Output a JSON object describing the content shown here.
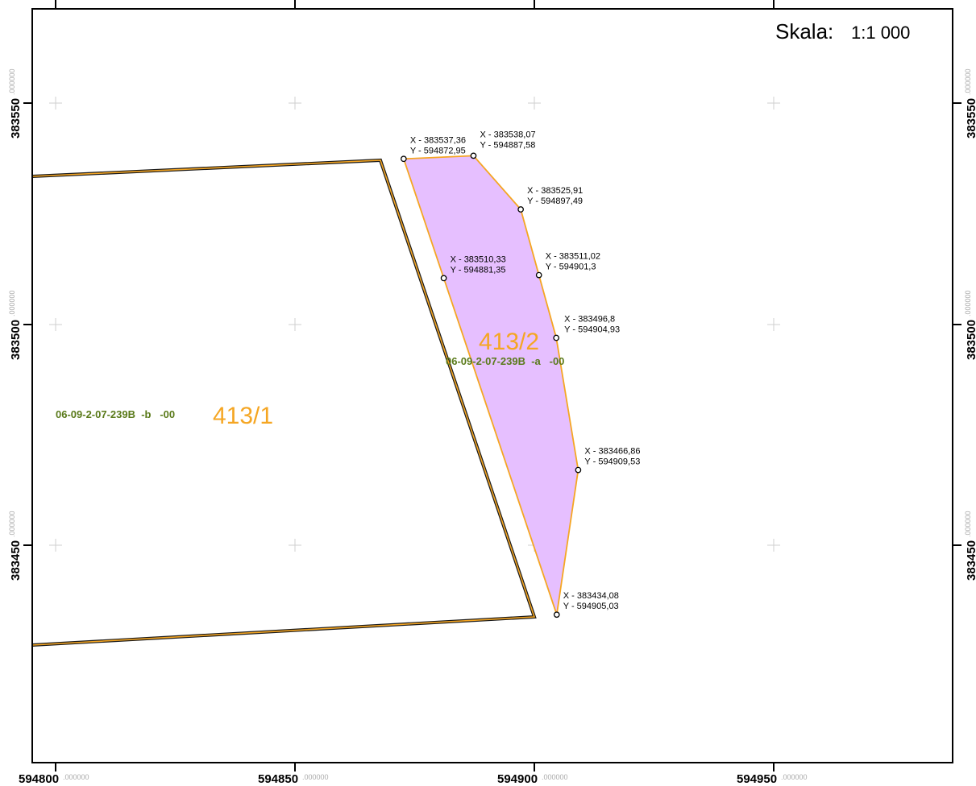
{
  "scale": {
    "label": "Skala:",
    "value": "1:1 000"
  },
  "axes": {
    "x_ticks": [
      {
        "major": "594800",
        "minor": ".000000"
      },
      {
        "major": "594850",
        "minor": ".000000"
      },
      {
        "major": "594900",
        "minor": ".000000"
      },
      {
        "major": "594950",
        "minor": ".000000"
      }
    ],
    "y_ticks": [
      {
        "major": "383550",
        "minor": ".000000"
      },
      {
        "major": "383500",
        "minor": ".000000"
      },
      {
        "major": "383450",
        "minor": ".000000"
      }
    ]
  },
  "colors": {
    "parcel_fill": "#e6bfff",
    "parcel_outline": "#f5a623",
    "parcel_number": "#f5a623",
    "parcel_code": "#5a7a1a"
  },
  "parcels": [
    {
      "number": "413/1",
      "code": "06-09-2-07-239B  -b   -00"
    },
    {
      "number": "413/2",
      "code": "06-09-2-07-239B  -a   -00"
    }
  ],
  "vertices": [
    {
      "x_label": "X - 383537,36",
      "y_label": "Y - 594872,95",
      "X": 383537.36,
      "Y": 594872.95
    },
    {
      "x_label": "X - 383538,07",
      "y_label": "Y - 594887,58",
      "X": 383538.07,
      "Y": 594887.58
    },
    {
      "x_label": "X - 383525,91",
      "y_label": "Y - 594897,49",
      "X": 383525.91,
      "Y": 594897.49
    },
    {
      "x_label": "X - 383511,02",
      "y_label": "Y - 594901,3",
      "X": 383511.02,
      "Y": 594901.3
    },
    {
      "x_label": "X - 383496,8",
      "y_label": "Y - 594904,93",
      "X": 383496.8,
      "Y": 594904.93
    },
    {
      "x_label": "X - 383466,86",
      "y_label": "Y - 594909,53",
      "X": 383466.86,
      "Y": 594909.53
    },
    {
      "x_label": "X - 383434,08",
      "y_label": "Y - 594905,03",
      "X": 383434.08,
      "Y": 594905.03
    },
    {
      "x_label": "X - 383510,33",
      "y_label": "Y - 594881,35",
      "X": 383510.33,
      "Y": 594881.35
    }
  ]
}
